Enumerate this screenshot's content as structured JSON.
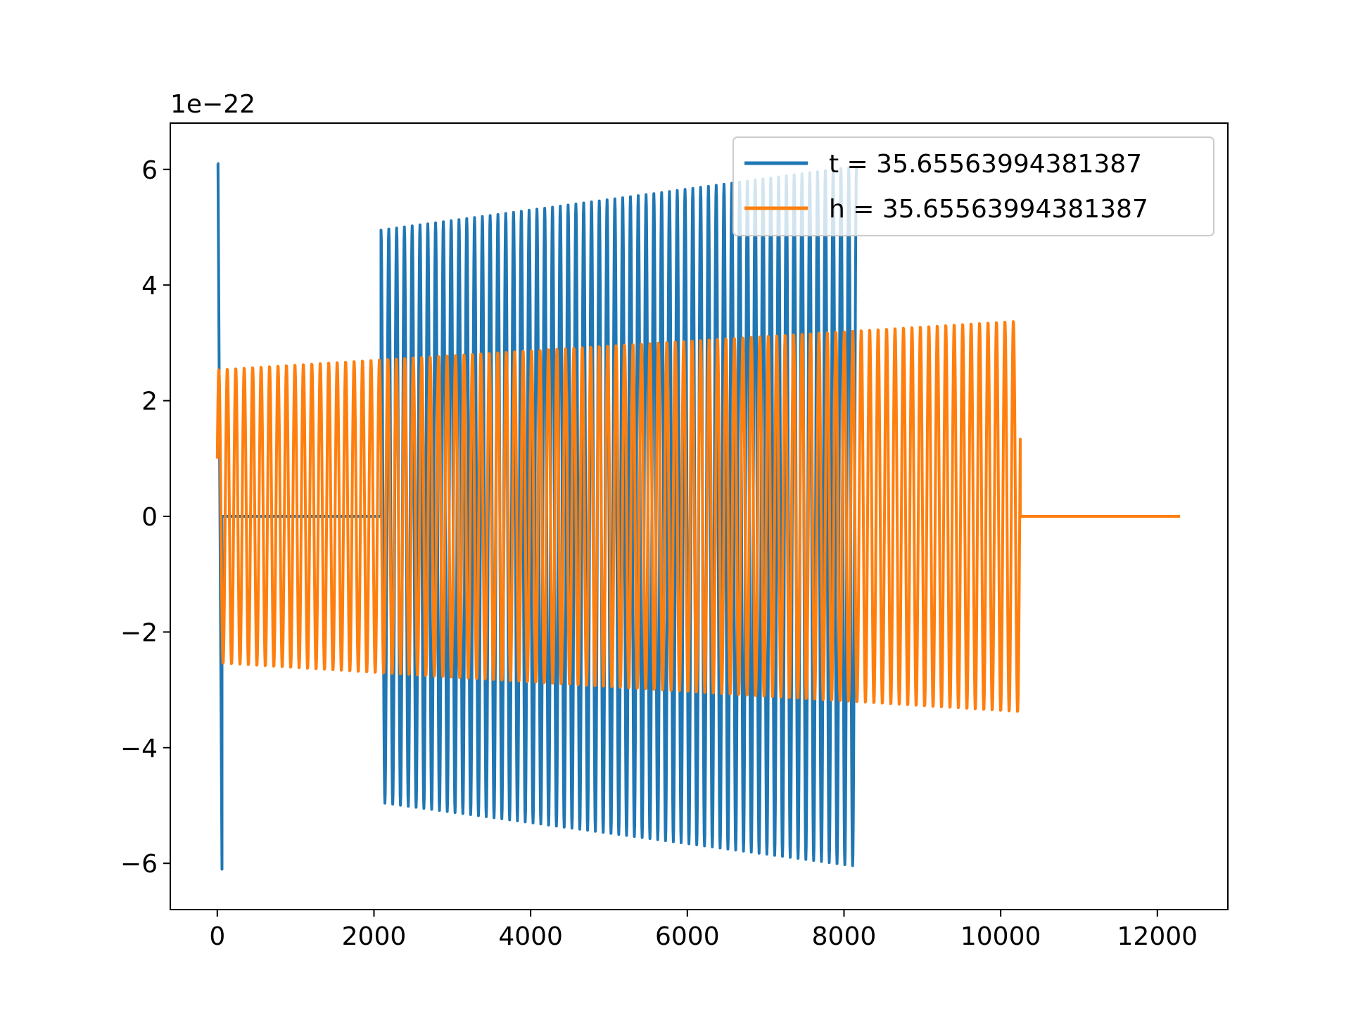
{
  "chart_data": {
    "type": "line",
    "title": "",
    "xlabel": "",
    "ylabel": "",
    "y_offset_label": "1e−22",
    "xlim": [
      -600,
      12900
    ],
    "ylim": [
      -6.8,
      6.8
    ],
    "grid": false,
    "legend_position": "top-right",
    "x_ticks": [
      {
        "value": 0,
        "label": "0"
      },
      {
        "value": 2000,
        "label": "2000"
      },
      {
        "value": 4000,
        "label": "4000"
      },
      {
        "value": 6000,
        "label": "6000"
      },
      {
        "value": 8000,
        "label": "8000"
      },
      {
        "value": 10000,
        "label": "10000"
      },
      {
        "value": 12000,
        "label": "12000"
      }
    ],
    "y_ticks": [
      {
        "value": -6,
        "label": "−6"
      },
      {
        "value": -4,
        "label": "−4"
      },
      {
        "value": -2,
        "label": "−2"
      },
      {
        "value": 0,
        "label": "0"
      },
      {
        "value": 2,
        "label": "2"
      },
      {
        "value": 4,
        "label": "4"
      },
      {
        "value": 6,
        "label": "6"
      }
    ],
    "series": [
      {
        "name": "t = 35.65563994381387",
        "color": "#1f77b4",
        "spike": {
          "start": 0,
          "end": 60,
          "max": 6.1,
          "min": -6.1
        },
        "zero_segment": {
          "start": 60,
          "end": 2090,
          "value": 0
        },
        "oscillation": {
          "start": 2090,
          "end": 8160,
          "cycles": 61,
          "amplitude_start": 4.95,
          "amplitude_end": 6.05
        }
      },
      {
        "name": "h = 35.65563994381387",
        "color": "#ff7f0e",
        "oscillation": {
          "start": 0,
          "end": 10250,
          "cycles": 95,
          "amplitude_start": 2.55,
          "amplitude_end": 3.4,
          "start_value": 1.0
        },
        "zero_segment": {
          "start": 10250,
          "end": 12290,
          "value": 0
        }
      }
    ]
  }
}
